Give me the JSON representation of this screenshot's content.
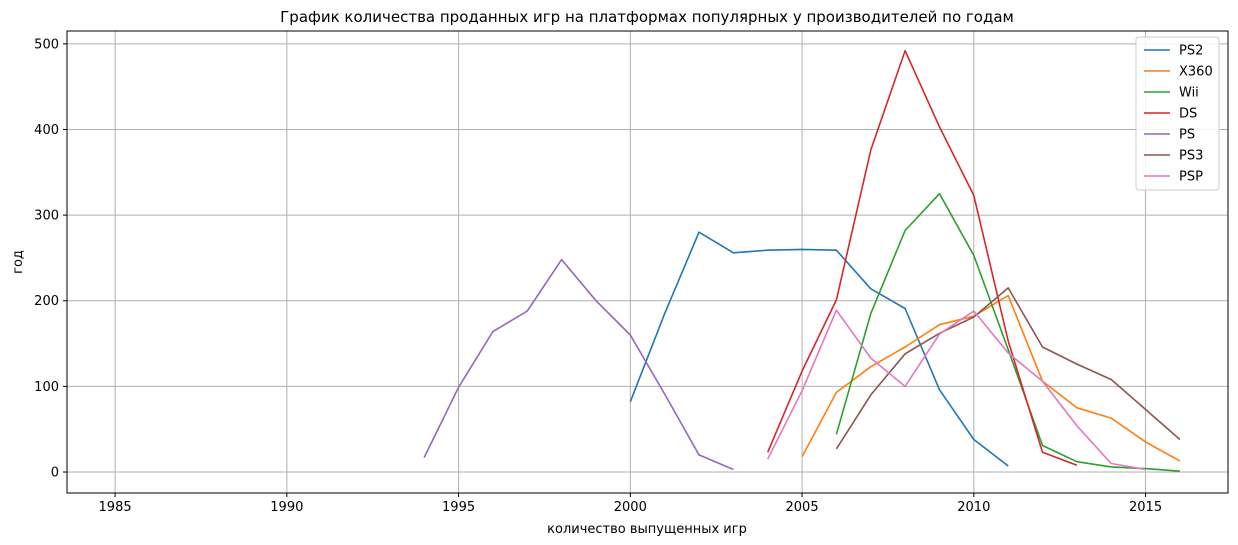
{
  "chart_data": {
    "type": "line",
    "title": "График количества проданных игр на платформах популярных у производителей по годам",
    "xlabel": "количество выпущенных игр",
    "ylabel": "год",
    "xlim": [
      1983.6,
      2017.4
    ],
    "ylim": [
      -24.5,
      515
    ],
    "xticks": [
      "1985",
      "1990",
      "1995",
      "2000",
      "2005",
      "2010",
      "2015"
    ],
    "yticks": [
      "0",
      "100",
      "200",
      "300",
      "400",
      "500"
    ],
    "grid": true,
    "legend_position": "top-right",
    "series": [
      {
        "name": "PS2",
        "color": "#1f77b4",
        "x": [
          2000,
          2001,
          2002,
          2003,
          2004,
          2005,
          2006,
          2007,
          2008,
          2009,
          2010,
          2011
        ],
        "y": [
          82,
          185,
          280,
          256,
          259,
          260,
          259,
          214,
          191,
          96,
          38,
          7
        ]
      },
      {
        "name": "X360",
        "color": "#ff7f0e",
        "x": [
          2005,
          2006,
          2007,
          2008,
          2009,
          2010,
          2011,
          2012,
          2013,
          2014,
          2015,
          2016
        ],
        "y": [
          18,
          93,
          123,
          146,
          172,
          182,
          206,
          106,
          75,
          63,
          35,
          13
        ]
      },
      {
        "name": "Wii",
        "color": "#2ca02c",
        "x": [
          2006,
          2007,
          2008,
          2009,
          2010,
          2011,
          2012,
          2013,
          2014,
          2015,
          2016
        ],
        "y": [
          44,
          185,
          282,
          325,
          253,
          143,
          31,
          12,
          6,
          4,
          1
        ]
      },
      {
        "name": "DS",
        "color": "#d62728",
        "x": [
          2004,
          2005,
          2006,
          2007,
          2008,
          2009,
          2010,
          2011,
          2012,
          2013
        ],
        "y": [
          23,
          118,
          201,
          376,
          492,
          403,
          323,
          153,
          23,
          8
        ]
      },
      {
        "name": "PS",
        "color": "#9467bd",
        "x": [
          1994,
          1995,
          1996,
          1997,
          1998,
          1999,
          2000,
          2001,
          2002,
          2003
        ],
        "y": [
          17,
          99,
          164,
          188,
          248,
          200,
          160,
          91,
          20,
          3
        ]
      },
      {
        "name": "PS3",
        "color": "#8c564b",
        "x": [
          2006,
          2007,
          2008,
          2009,
          2010,
          2011,
          2012,
          2013,
          2014,
          2015,
          2016
        ],
        "y": [
          27,
          90,
          138,
          162,
          181,
          215,
          146,
          126,
          108,
          73,
          38
        ]
      },
      {
        "name": "PSP",
        "color": "#e377c2",
        "x": [
          2004,
          2005,
          2006,
          2007,
          2008,
          2009,
          2010,
          2011,
          2012,
          2013,
          2014,
          2015
        ],
        "y": [
          15,
          95,
          189,
          133,
          100,
          161,
          188,
          139,
          106,
          54,
          10,
          3
        ]
      }
    ]
  }
}
